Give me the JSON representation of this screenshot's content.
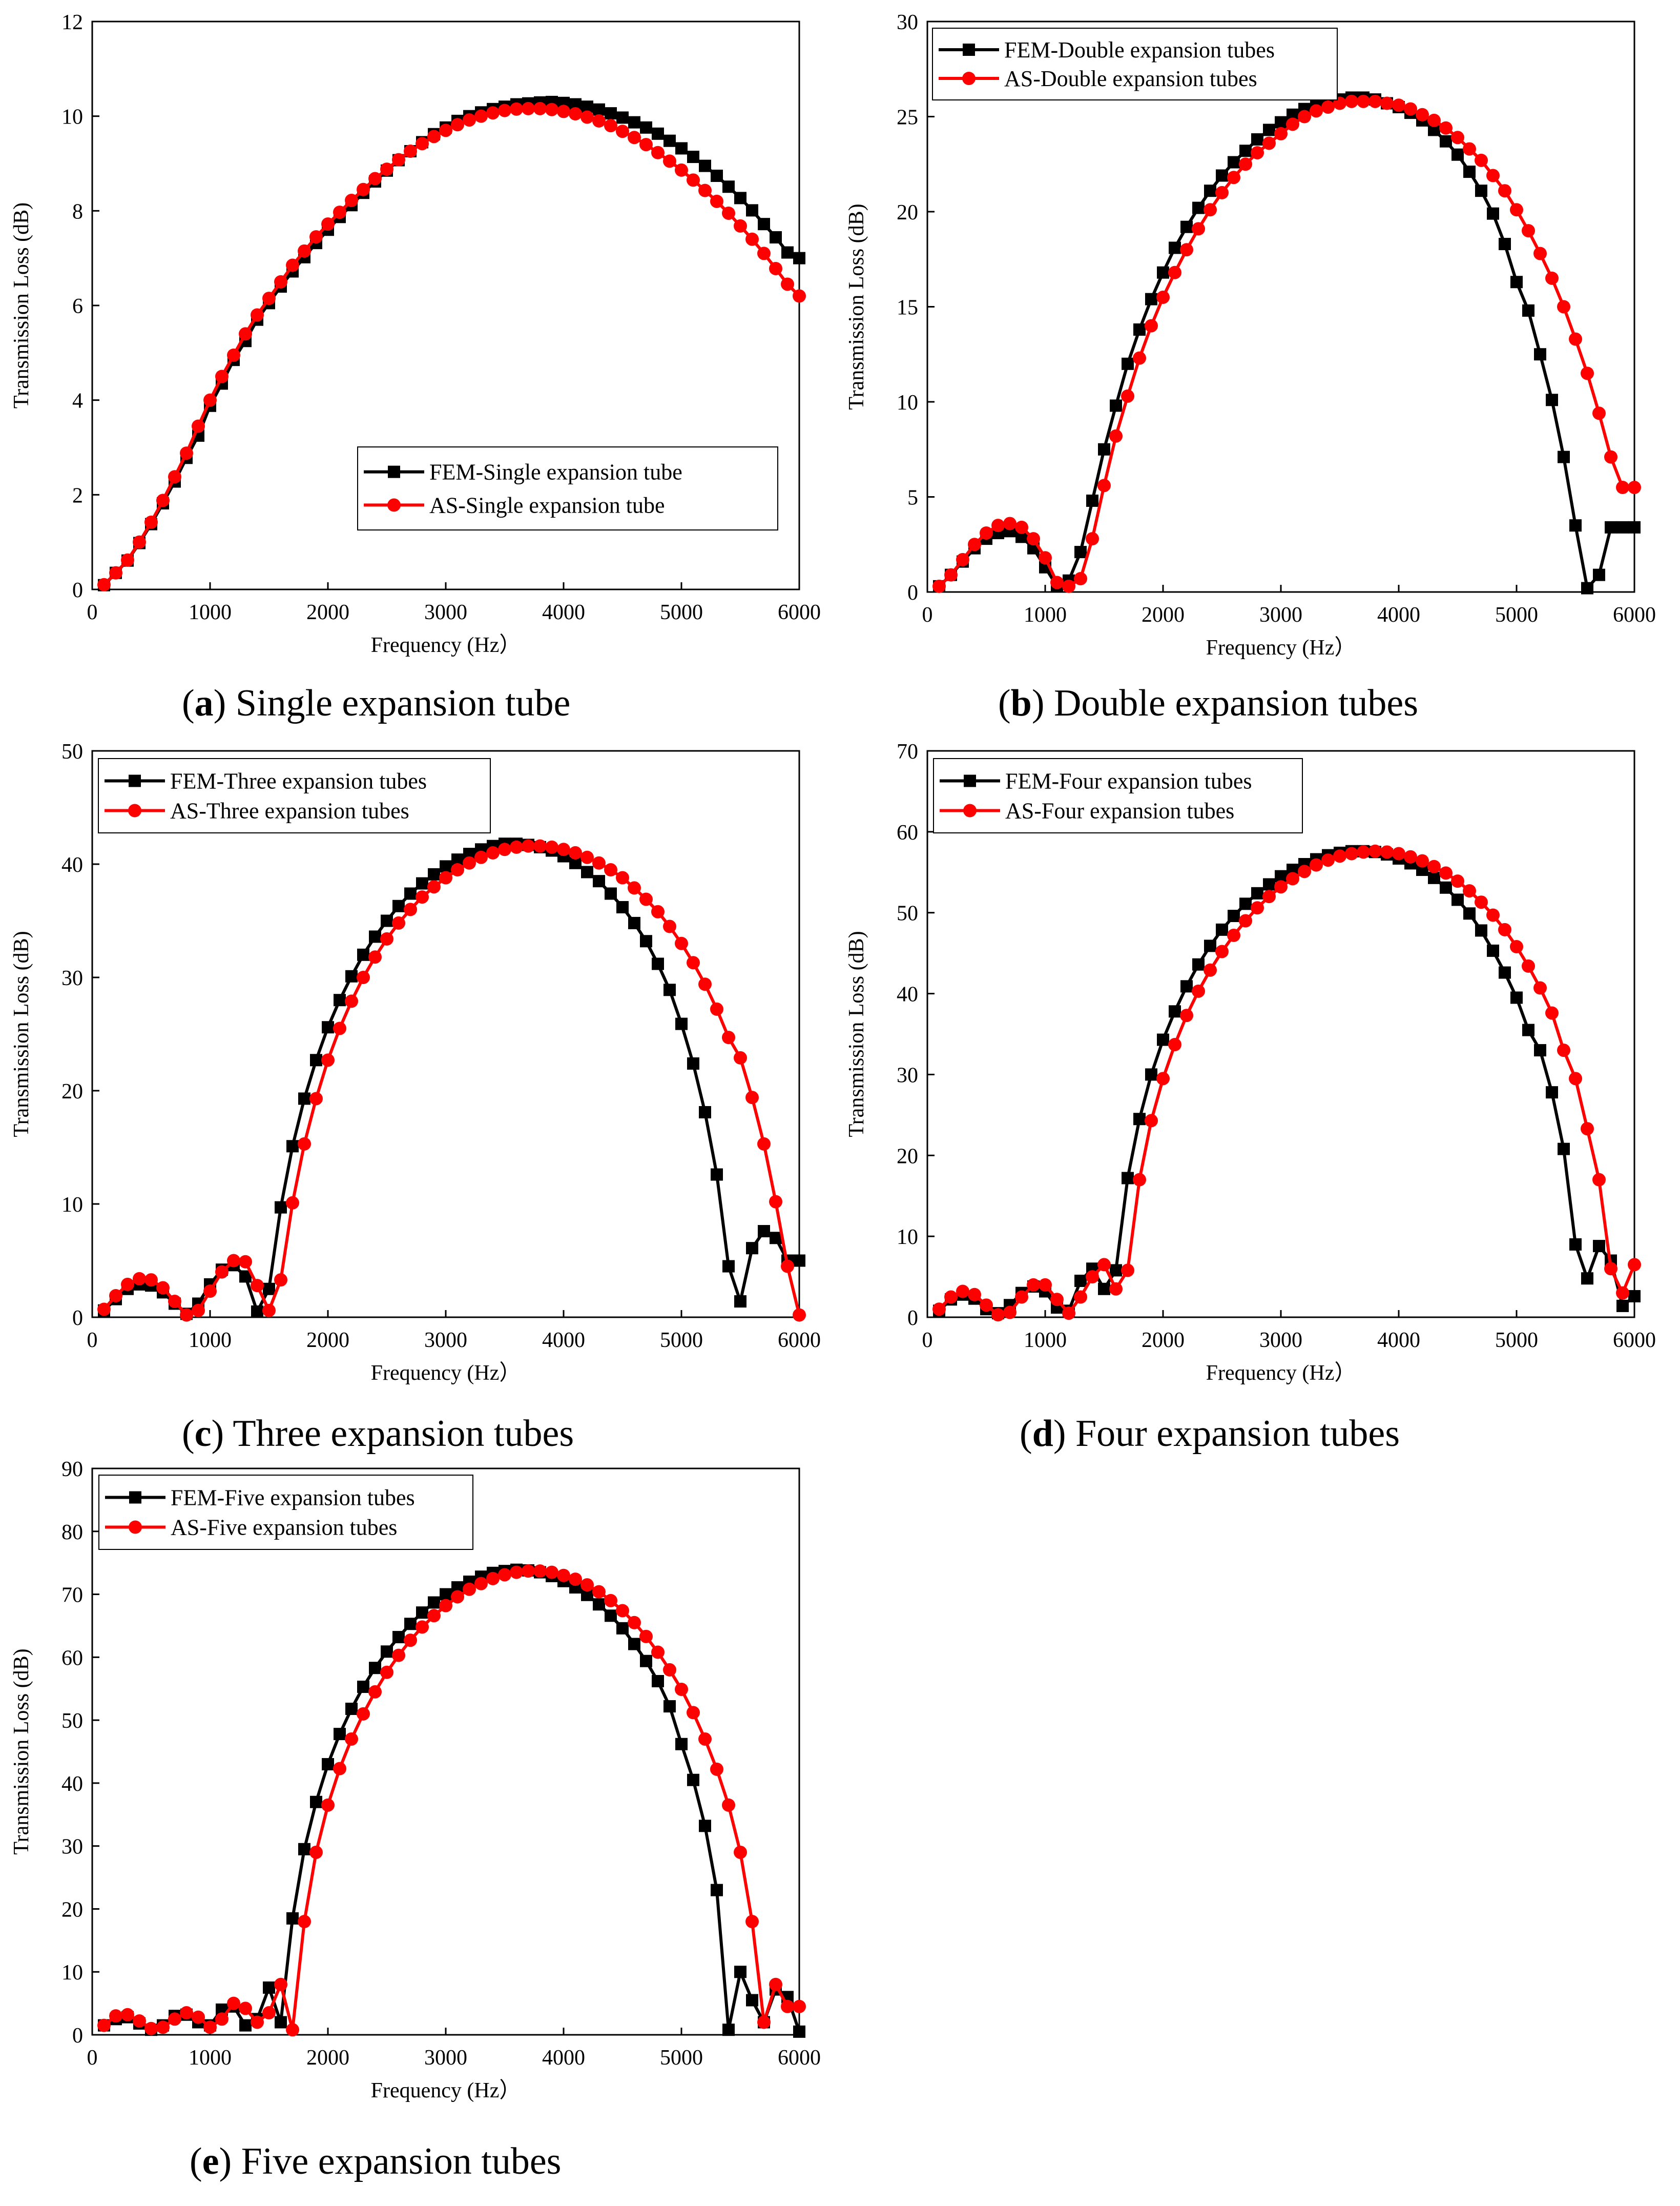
{
  "chart_data": [
    {
      "id": "a",
      "type": "line",
      "caption_letter": "a",
      "caption_text": "Single expansion tube",
      "xlabel": "Frequency (Hz）",
      "ylabel": "Transmission Loss (dB)",
      "xlim": [
        0,
        6000
      ],
      "ylim": [
        0,
        12
      ],
      "xticks": [
        0,
        1000,
        2000,
        3000,
        4000,
        5000,
        6000
      ],
      "yticks": [
        0,
        2,
        4,
        6,
        8,
        10,
        12
      ],
      "legend": "bottom-right",
      "x": [
        100,
        200,
        300,
        400,
        500,
        600,
        700,
        800,
        900,
        1000,
        1100,
        1200,
        1300,
        1400,
        1500,
        1600,
        1700,
        1800,
        1900,
        2000,
        2100,
        2200,
        2300,
        2400,
        2500,
        2600,
        2700,
        2800,
        2900,
        3000,
        3100,
        3200,
        3300,
        3400,
        3500,
        3600,
        3700,
        3800,
        3900,
        4000,
        4100,
        4200,
        4300,
        4400,
        4500,
        4600,
        4700,
        4800,
        4900,
        5000,
        5100,
        5200,
        5300,
        5400,
        5500,
        5600,
        5700,
        5800,
        5900,
        6000
      ],
      "series": [
        {
          "name": "FEM-Single expansion tube",
          "color": "#000000",
          "marker": "square",
          "values": [
            0.09,
            0.35,
            0.61,
            0.98,
            1.38,
            1.82,
            2.28,
            2.78,
            3.25,
            3.88,
            4.35,
            4.85,
            5.25,
            5.7,
            6.05,
            6.4,
            6.72,
            7.02,
            7.32,
            7.6,
            7.87,
            8.12,
            8.38,
            8.62,
            8.85,
            9.07,
            9.26,
            9.45,
            9.62,
            9.76,
            9.9,
            10.0,
            10.08,
            10.15,
            10.2,
            10.25,
            10.27,
            10.29,
            10.3,
            10.28,
            10.25,
            10.2,
            10.14,
            10.06,
            9.97,
            9.87,
            9.76,
            9.63,
            9.48,
            9.32,
            9.14,
            8.95,
            8.74,
            8.51,
            8.27,
            8.01,
            7.72,
            7.44,
            7.12,
            7.0
          ]
        },
        {
          "name": "AS-Single expansion tube",
          "color": "#ff0000",
          "marker": "circle",
          "values": [
            0.1,
            0.35,
            0.62,
            1.0,
            1.42,
            1.88,
            2.38,
            2.88,
            3.45,
            4.0,
            4.5,
            4.95,
            5.4,
            5.8,
            6.15,
            6.5,
            6.85,
            7.15,
            7.45,
            7.72,
            7.97,
            8.22,
            8.45,
            8.68,
            8.88,
            9.08,
            9.26,
            9.42,
            9.57,
            9.7,
            9.82,
            9.92,
            10.0,
            10.07,
            10.12,
            10.15,
            10.16,
            10.16,
            10.14,
            10.1,
            10.05,
            9.98,
            9.9,
            9.8,
            9.68,
            9.55,
            9.4,
            9.23,
            9.05,
            8.86,
            8.65,
            8.43,
            8.2,
            7.95,
            7.68,
            7.4,
            7.1,
            6.78,
            6.45,
            6.2
          ]
        }
      ]
    },
    {
      "id": "b",
      "type": "line",
      "caption_letter": "b",
      "caption_text": "Double expansion tubes",
      "xlabel": "Frequency (Hz）",
      "ylabel": "Transmission Loss (dB)",
      "xlim": [
        0,
        6000
      ],
      "ylim": [
        0,
        30
      ],
      "xticks": [
        0,
        1000,
        2000,
        3000,
        4000,
        5000,
        6000
      ],
      "yticks": [
        0,
        5,
        10,
        15,
        20,
        25,
        30
      ],
      "legend": "top-left",
      "x": [
        100,
        200,
        300,
        400,
        500,
        600,
        700,
        800,
        900,
        1000,
        1100,
        1200,
        1300,
        1400,
        1500,
        1600,
        1700,
        1800,
        1900,
        2000,
        2100,
        2200,
        2300,
        2400,
        2500,
        2600,
        2700,
        2800,
        2900,
        3000,
        3100,
        3200,
        3300,
        3400,
        3500,
        3600,
        3700,
        3800,
        3900,
        4000,
        4100,
        4200,
        4300,
        4400,
        4500,
        4600,
        4700,
        4800,
        4900,
        5000,
        5100,
        5200,
        5300,
        5400,
        5500,
        5600,
        5700,
        5800,
        5900,
        6000
      ],
      "series": [
        {
          "name": "FEM-Double expansion tubes",
          "color": "#000000",
          "marker": "square",
          "values": [
            0.3,
            0.9,
            1.6,
            2.3,
            2.8,
            3.1,
            3.2,
            2.9,
            2.3,
            1.3,
            0.3,
            0.6,
            2.1,
            4.8,
            7.5,
            9.8,
            12.0,
            13.8,
            15.4,
            16.8,
            18.1,
            19.2,
            20.2,
            21.1,
            21.9,
            22.6,
            23.2,
            23.8,
            24.3,
            24.7,
            25.1,
            25.4,
            25.6,
            25.8,
            25.9,
            26.0,
            26.0,
            25.9,
            25.7,
            25.5,
            25.2,
            24.8,
            24.3,
            23.7,
            23.0,
            22.1,
            21.1,
            19.9,
            18.3,
            16.3,
            14.8,
            12.5,
            10.1,
            7.1,
            3.5,
            0.2,
            0.9,
            3.4,
            3.4,
            3.4
          ]
        },
        {
          "name": "AS-Double expansion tubes",
          "color": "#ff0000",
          "marker": "circle",
          "values": [
            0.3,
            0.9,
            1.7,
            2.5,
            3.1,
            3.5,
            3.6,
            3.4,
            2.8,
            1.8,
            0.5,
            0.3,
            0.7,
            2.8,
            5.6,
            8.2,
            10.3,
            12.3,
            14.0,
            15.5,
            16.8,
            18.0,
            19.1,
            20.1,
            21.0,
            21.8,
            22.5,
            23.1,
            23.6,
            24.1,
            24.6,
            25.0,
            25.3,
            25.5,
            25.7,
            25.8,
            25.8,
            25.8,
            25.7,
            25.6,
            25.4,
            25.1,
            24.8,
            24.4,
            23.9,
            23.3,
            22.7,
            21.9,
            21.1,
            20.1,
            19.0,
            17.8,
            16.5,
            15.0,
            13.3,
            11.5,
            9.4,
            7.1,
            5.5,
            5.5
          ]
        }
      ]
    },
    {
      "id": "c",
      "type": "line",
      "caption_letter": "c",
      "caption_text": "Three expansion tubes",
      "xlabel": "Frequency (Hz）",
      "ylabel": "Transmission Loss (dB)",
      "xlim": [
        0,
        6000
      ],
      "ylim": [
        0,
        50
      ],
      "xticks": [
        0,
        1000,
        2000,
        3000,
        4000,
        5000,
        6000
      ],
      "yticks": [
        0,
        10,
        20,
        30,
        40,
        50
      ],
      "legend": "top-left",
      "x": [
        100,
        200,
        300,
        400,
        500,
        600,
        700,
        800,
        900,
        1000,
        1100,
        1200,
        1300,
        1400,
        1500,
        1600,
        1700,
        1800,
        1900,
        2000,
        2100,
        2200,
        2300,
        2400,
        2500,
        2600,
        2700,
        2800,
        2900,
        3000,
        3100,
        3200,
        3300,
        3400,
        3500,
        3600,
        3700,
        3800,
        3900,
        4000,
        4100,
        4200,
        4300,
        4400,
        4500,
        4600,
        4700,
        4800,
        4900,
        5000,
        5100,
        5200,
        5300,
        5400,
        5500,
        5600,
        5700,
        5800,
        5900,
        6000
      ],
      "series": [
        {
          "name": "FEM-Three expansion tubes",
          "color": "#000000",
          "marker": "square",
          "values": [
            0.6,
            1.6,
            2.5,
            2.9,
            2.8,
            2.2,
            1.2,
            0.3,
            1.2,
            2.9,
            4.2,
            4.6,
            3.6,
            0.5,
            2.5,
            9.7,
            15.1,
            19.3,
            22.7,
            25.6,
            28.0,
            30.1,
            32.0,
            33.6,
            35.0,
            36.3,
            37.4,
            38.3,
            39.1,
            39.8,
            40.4,
            40.9,
            41.3,
            41.6,
            41.8,
            41.8,
            41.7,
            41.5,
            41.2,
            40.7,
            40.1,
            39.3,
            38.5,
            37.4,
            36.2,
            34.8,
            33.2,
            31.2,
            28.9,
            25.9,
            22.4,
            18.1,
            12.6,
            4.5,
            1.4,
            6.1,
            7.6,
            7.0,
            5.0,
            5.0
          ]
        },
        {
          "name": "AS-Three expansion tubes",
          "color": "#ff0000",
          "marker": "circle",
          "values": [
            0.7,
            1.9,
            2.9,
            3.4,
            3.3,
            2.6,
            1.4,
            0.2,
            0.6,
            2.3,
            4.0,
            5.0,
            4.9,
            2.8,
            0.6,
            3.3,
            10.1,
            15.3,
            19.3,
            22.7,
            25.5,
            27.9,
            30.0,
            31.8,
            33.4,
            34.8,
            36.0,
            37.1,
            38.0,
            38.8,
            39.5,
            40.1,
            40.6,
            41.0,
            41.3,
            41.5,
            41.6,
            41.6,
            41.5,
            41.3,
            41.0,
            40.6,
            40.1,
            39.5,
            38.8,
            37.9,
            36.9,
            35.8,
            34.5,
            33.0,
            31.3,
            29.4,
            27.2,
            24.7,
            22.9,
            19.4,
            15.3,
            10.2,
            4.5,
            0.2
          ]
        }
      ]
    },
    {
      "id": "d",
      "type": "line",
      "caption_letter": "d",
      "caption_text": "Four expansion tubes",
      "xlabel": "Frequency (Hz）",
      "ylabel": "Transmission Loss (dB)",
      "xlim": [
        0,
        6000
      ],
      "ylim": [
        0,
        70
      ],
      "xticks": [
        0,
        1000,
        2000,
        3000,
        4000,
        5000,
        6000
      ],
      "yticks": [
        0,
        10,
        20,
        30,
        40,
        50,
        60,
        70
      ],
      "legend": "top-left",
      "x": [
        100,
        200,
        300,
        400,
        500,
        600,
        700,
        800,
        900,
        1000,
        1100,
        1200,
        1300,
        1400,
        1500,
        1600,
        1700,
        1800,
        1900,
        2000,
        2100,
        2200,
        2300,
        2400,
        2500,
        2600,
        2700,
        2800,
        2900,
        3000,
        3100,
        3200,
        3300,
        3400,
        3500,
        3600,
        3700,
        3800,
        3900,
        4000,
        4100,
        4200,
        4300,
        4400,
        4500,
        4600,
        4700,
        4800,
        4900,
        5000,
        5100,
        5200,
        5300,
        5400,
        5500,
        5600,
        5700,
        5800,
        5900,
        6000
      ],
      "series": [
        {
          "name": "FEM-Four expansion tubes",
          "color": "#000000",
          "marker": "square",
          "values": [
            0.8,
            2.2,
            2.8,
            2.3,
            1.0,
            0.5,
            1.5,
            3.0,
            3.8,
            3.2,
            1.2,
            0.8,
            4.5,
            6.0,
            3.5,
            5.8,
            17.2,
            24.5,
            30.0,
            34.3,
            37.8,
            40.9,
            43.6,
            45.9,
            47.9,
            49.6,
            51.1,
            52.4,
            53.5,
            54.5,
            55.3,
            56.0,
            56.6,
            57.1,
            57.4,
            57.6,
            57.6,
            57.5,
            57.2,
            56.7,
            56.1,
            55.3,
            54.3,
            53.1,
            51.6,
            49.9,
            47.8,
            45.3,
            42.6,
            39.5,
            35.5,
            33.0,
            27.8,
            20.8,
            9.0,
            4.8,
            8.8,
            7.0,
            1.4,
            2.6
          ]
        },
        {
          "name": "AS-Four expansion tubes",
          "color": "#ff0000",
          "marker": "circle",
          "values": [
            1.0,
            2.5,
            3.2,
            2.8,
            1.5,
            0.3,
            0.6,
            2.5,
            4.0,
            4.0,
            2.2,
            0.5,
            2.5,
            5.0,
            6.5,
            3.5,
            5.8,
            17.0,
            24.3,
            29.5,
            33.7,
            37.3,
            40.3,
            42.9,
            45.2,
            47.2,
            49.0,
            50.6,
            52.0,
            53.2,
            54.2,
            55.1,
            55.9,
            56.5,
            57.0,
            57.3,
            57.5,
            57.6,
            57.5,
            57.3,
            56.9,
            56.4,
            55.7,
            54.9,
            53.9,
            52.7,
            51.3,
            49.7,
            47.9,
            45.8,
            43.4,
            40.7,
            37.6,
            33.0,
            29.5,
            23.3,
            17.0,
            6.0,
            3.0,
            6.5
          ]
        }
      ]
    },
    {
      "id": "e",
      "type": "line",
      "caption_letter": "e",
      "caption_text": "Five expansion tubes",
      "xlabel": "Frequency (Hz）",
      "ylabel": "Transmission Loss (dB)",
      "xlim": [
        0,
        6000
      ],
      "ylim": [
        0,
        90
      ],
      "xticks": [
        0,
        1000,
        2000,
        3000,
        4000,
        5000,
        6000
      ],
      "yticks": [
        0,
        10,
        20,
        30,
        40,
        50,
        60,
        70,
        80,
        90
      ],
      "legend": "top-left",
      "x": [
        100,
        200,
        300,
        400,
        500,
        600,
        700,
        800,
        900,
        1000,
        1100,
        1200,
        1300,
        1400,
        1500,
        1600,
        1700,
        1800,
        1900,
        2000,
        2100,
        2200,
        2300,
        2400,
        2500,
        2600,
        2700,
        2800,
        2900,
        3000,
        3100,
        3200,
        3300,
        3400,
        3500,
        3600,
        3700,
        3800,
        3900,
        4000,
        4100,
        4200,
        4300,
        4400,
        4500,
        4600,
        4700,
        4800,
        4900,
        5000,
        5100,
        5200,
        5300,
        5400,
        5500,
        5600,
        5700,
        5800,
        5900,
        6000
      ],
      "series": [
        {
          "name": "FEM-Five expansion tubes",
          "color": "#000000",
          "marker": "square",
          "values": [
            1.5,
            2.5,
            2.8,
            1.8,
            0.8,
            1.5,
            3.0,
            3.2,
            2.0,
            1.5,
            4.0,
            4.5,
            1.5,
            2.5,
            7.5,
            2.0,
            18.5,
            29.5,
            37.0,
            43.0,
            47.8,
            51.8,
            55.3,
            58.3,
            60.9,
            63.2,
            65.3,
            67.1,
            68.7,
            70.0,
            71.1,
            72.0,
            72.8,
            73.4,
            73.7,
            73.9,
            73.8,
            73.5,
            72.9,
            72.1,
            71.1,
            69.9,
            68.4,
            66.6,
            64.6,
            62.1,
            59.4,
            56.2,
            52.2,
            46.2,
            40.5,
            33.2,
            23.0,
            0.8,
            10.0,
            5.5,
            2.0,
            7.2,
            6.0,
            0.5
          ]
        },
        {
          "name": "AS-Five expansion tubes",
          "color": "#ff0000",
          "marker": "circle",
          "values": [
            1.5,
            3.0,
            3.2,
            2.2,
            1.0,
            1.2,
            2.5,
            3.5,
            2.8,
            1.2,
            2.5,
            5.0,
            4.2,
            2.0,
            3.5,
            8.0,
            0.8,
            18.0,
            29.0,
            36.5,
            42.3,
            47.0,
            51.0,
            54.5,
            57.6,
            60.3,
            62.7,
            64.8,
            66.6,
            68.2,
            69.6,
            70.8,
            71.7,
            72.5,
            73.1,
            73.5,
            73.7,
            73.7,
            73.5,
            73.0,
            72.4,
            71.5,
            70.4,
            69.0,
            67.4,
            65.5,
            63.3,
            60.8,
            58.0,
            54.9,
            51.2,
            47.0,
            42.2,
            36.5,
            29.0,
            18.0,
            2.0,
            8.0,
            4.5,
            4.5
          ]
        }
      ]
    }
  ]
}
